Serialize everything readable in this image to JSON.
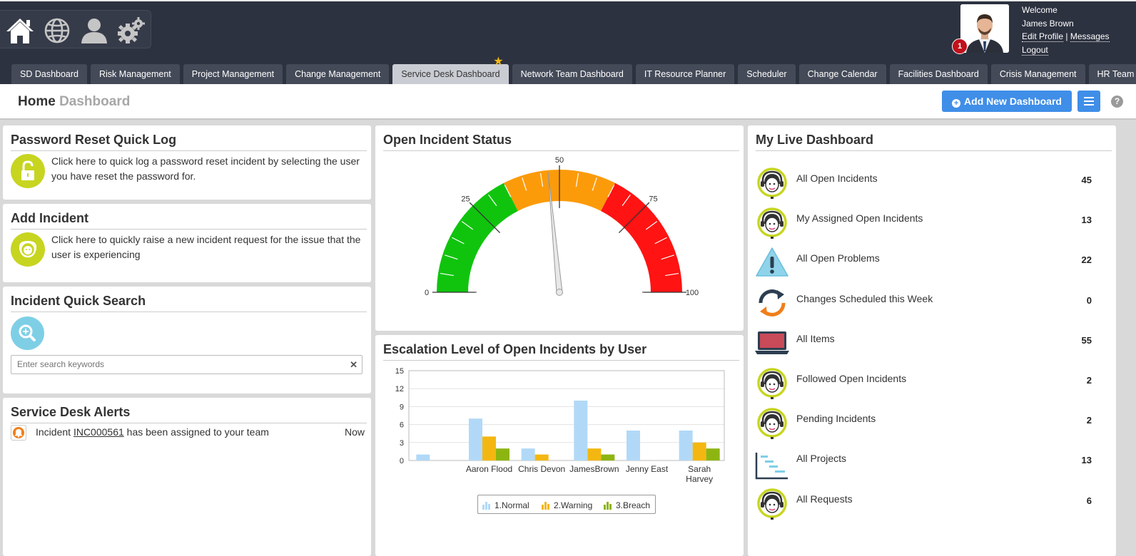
{
  "colors": {
    "topbar": "#2d3240",
    "tab_bg": "#444a58",
    "tab_active_bg": "#c9ccd2",
    "primary_blue": "#3f8ee8",
    "lime": "#c7d520",
    "search_circle": "#7ecfe6",
    "gauge_green": "#10c40e",
    "gauge_orange": "#fc9b0a",
    "gauge_red": "#ff1313",
    "bar_normal": "#b1d9f7",
    "bar_warning": "#f4b711",
    "bar_breach": "#8db512"
  },
  "top_icons": [
    "home-icon",
    "globe-icon",
    "user-icon",
    "settings-icon"
  ],
  "user": {
    "welcome": "Welcome",
    "name": "James Brown",
    "edit_profile": "Edit Profile",
    "separator": "|",
    "messages": "Messages",
    "logout": "Logout",
    "notification_count": "1"
  },
  "tabs": [
    {
      "label": "SD Dashboard"
    },
    {
      "label": "Risk Management"
    },
    {
      "label": "Project Management"
    },
    {
      "label": "Change Management"
    },
    {
      "label": "Service Desk Dashboard",
      "active": true,
      "starred": true
    },
    {
      "label": "Network Team Dashboard"
    },
    {
      "label": "IT Resource Planner"
    },
    {
      "label": "Scheduler"
    },
    {
      "label": "Change Calendar"
    },
    {
      "label": "Facilities Dashboard"
    },
    {
      "label": "Crisis Management"
    },
    {
      "label": "HR Team"
    }
  ],
  "header": {
    "title_home": "Home",
    "title_dashboard": "Dashboard",
    "add_button": "Add New Dashboard",
    "add_icon": "plus-circle-icon",
    "menu_icon": "hamburger-icon",
    "help": "?"
  },
  "password_reset": {
    "title": "Password Reset Quick Log",
    "text": "Click here to quick log a password reset incident by selecting the user you have reset the password for.",
    "icon": "unlock-icon"
  },
  "add_incident": {
    "title": "Add Incident",
    "text": "Click here to quickly raise a new incident request for the issue that the user is experiencing",
    "icon": "headset-agent-icon"
  },
  "quick_search": {
    "title": "Incident Quick Search",
    "placeholder": "Enter search keywords",
    "value": "",
    "clear": "✕",
    "icon": "zoom-in-icon"
  },
  "alerts": {
    "title": "Service Desk Alerts",
    "items": [
      {
        "prefix": "Incident",
        "link": "INC000561",
        "suffix": "has been assigned to your team",
        "time": "Now",
        "icon": "bell-icon"
      }
    ]
  },
  "open_incident_status": {
    "title": "Open Incident Status",
    "min": 0,
    "max": 100,
    "value": 47,
    "ticks": [
      "0",
      "25",
      "50",
      "75",
      "100"
    ],
    "bands": [
      {
        "from": 0,
        "to": 35,
        "color": "green"
      },
      {
        "from": 35,
        "to": 65,
        "color": "orange"
      },
      {
        "from": 65,
        "to": 100,
        "color": "red"
      }
    ]
  },
  "chart_data": {
    "type": "bar",
    "title": "Escalation Level of Open Incidents by User",
    "categories": [
      "",
      "Aaron Flood",
      "Chris Devon",
      "JamesBrown",
      "Jenny East",
      "Sarah Harvey"
    ],
    "series": [
      {
        "name": "1.Normal",
        "values": [
          1,
          7,
          2,
          10,
          5,
          5
        ]
      },
      {
        "name": "2.Warning",
        "values": [
          0,
          4,
          1,
          2,
          0,
          3
        ]
      },
      {
        "name": "3.Breach",
        "values": [
          0,
          2,
          0,
          1,
          0,
          2
        ]
      }
    ],
    "yticks": [
      "0",
      "3",
      "6",
      "9",
      "12",
      "15"
    ],
    "ylim": [
      0,
      15
    ],
    "legend": "bottom",
    "grid": true
  },
  "live_dashboard": {
    "title": "My Live Dashboard",
    "items": [
      {
        "label": "All Open Incidents",
        "count": "45",
        "icon": "headset-agent-icon"
      },
      {
        "label": "My Assigned Open Incidents",
        "count": "13",
        "icon": "headset-agent-icon"
      },
      {
        "label": "All Open Problems",
        "count": "22",
        "icon": "warning-triangle-icon"
      },
      {
        "label": "Changes Scheduled this Week",
        "count": "0",
        "icon": "refresh-cycle-icon"
      },
      {
        "label": "All Items",
        "count": "55",
        "icon": "laptop-icon"
      },
      {
        "label": "Followed Open Incidents",
        "count": "2",
        "icon": "headset-agent-icon"
      },
      {
        "label": "Pending Incidents",
        "count": "2",
        "icon": "headset-agent-icon"
      },
      {
        "label": "All Projects",
        "count": "13",
        "icon": "gantt-chart-icon"
      },
      {
        "label": "All Requests",
        "count": "6",
        "icon": "headset-agent-icon"
      }
    ]
  }
}
